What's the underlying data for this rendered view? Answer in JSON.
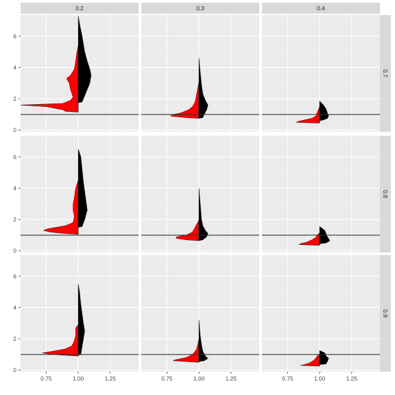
{
  "chart_data": {
    "type": "split-violin",
    "facet_cols": [
      "0.2",
      "0.3",
      "0.4"
    ],
    "facet_rows": [
      "0.7",
      "0.8",
      "0.9"
    ],
    "x_ticks": [
      "0.75",
      "1.00",
      "1.25"
    ],
    "x_tick_values": [
      0.75,
      1.0,
      1.25
    ],
    "y_ticks": [
      "0",
      "2",
      "4",
      "6"
    ],
    "y_tick_values": [
      0,
      2,
      4,
      6
    ],
    "xlim": [
      0.55,
      1.47
    ],
    "ylim": [
      -0.1,
      7.35
    ],
    "reference_line_y": 1,
    "colors": {
      "left_half": "#ff0000",
      "right_half": "#000000",
      "outline": "#1a1a1a",
      "panel_bg": "#ebebeb",
      "grid_major": "#ffffff",
      "strip_bg": "#d9d9d9",
      "hline": "#333333"
    },
    "panels": [
      {
        "col": "0.2",
        "row": "0.7",
        "left": [
          [
            1.15,
            0
          ],
          [
            1.2,
            0.1
          ],
          [
            1.3,
            0.12
          ],
          [
            1.5,
            0.25
          ],
          [
            1.6,
            0.45
          ],
          [
            1.7,
            0.12
          ],
          [
            1.9,
            0.06
          ],
          [
            2.1,
            0.04
          ],
          [
            2.6,
            0.06
          ],
          [
            3.0,
            0.07
          ],
          [
            3.3,
            0.09
          ],
          [
            3.5,
            0.06
          ],
          [
            3.9,
            0.03
          ],
          [
            4.4,
            0.02
          ],
          [
            5.0,
            0.01
          ],
          [
            5.4,
            0
          ]
        ],
        "right": [
          [
            1.75,
            0
          ],
          [
            1.8,
            0.03
          ],
          [
            2.2,
            0.05
          ],
          [
            2.6,
            0.07
          ],
          [
            3.0,
            0.09
          ],
          [
            3.5,
            0.1
          ],
          [
            3.9,
            0.09
          ],
          [
            4.4,
            0.07
          ],
          [
            5.0,
            0.05
          ],
          [
            6.0,
            0.03
          ],
          [
            6.8,
            0.01
          ],
          [
            7.3,
            0
          ]
        ]
      },
      {
        "col": "0.3",
        "row": "0.7",
        "left": [
          [
            0.75,
            0
          ],
          [
            0.8,
            0.1
          ],
          [
            0.9,
            0.22
          ],
          [
            1.0,
            0.2
          ],
          [
            1.1,
            0.14
          ],
          [
            1.3,
            0.08
          ],
          [
            1.5,
            0.05
          ],
          [
            1.8,
            0.03
          ],
          [
            2.2,
            0.02
          ],
          [
            2.6,
            0.01
          ],
          [
            3.1,
            0
          ]
        ],
        "right": [
          [
            0.75,
            0
          ],
          [
            0.8,
            0.03
          ],
          [
            1.0,
            0.04
          ],
          [
            1.3,
            0.06
          ],
          [
            1.6,
            0.07
          ],
          [
            1.9,
            0.05
          ],
          [
            2.3,
            0.03
          ],
          [
            2.9,
            0.02
          ],
          [
            3.7,
            0.01
          ],
          [
            4.6,
            0
          ]
        ]
      },
      {
        "col": "0.4",
        "row": "0.7",
        "left": [
          [
            0.45,
            0
          ],
          [
            0.5,
            0.18
          ],
          [
            0.55,
            0.17
          ],
          [
            0.65,
            0.12
          ],
          [
            0.75,
            0.06
          ],
          [
            0.9,
            0.03
          ],
          [
            1.1,
            0.02
          ],
          [
            1.3,
            0.01
          ],
          [
            1.5,
            0
          ]
        ],
        "right": [
          [
            0.6,
            0
          ],
          [
            0.65,
            0.03
          ],
          [
            0.75,
            0.06
          ],
          [
            0.9,
            0.07
          ],
          [
            1.1,
            0.06
          ],
          [
            1.35,
            0.05
          ],
          [
            1.6,
            0.03
          ],
          [
            1.85,
            0
          ]
        ]
      },
      {
        "col": "0.2",
        "row": "0.8",
        "left": [
          [
            1.05,
            0
          ],
          [
            1.1,
            0.1
          ],
          [
            1.2,
            0.22
          ],
          [
            1.3,
            0.27
          ],
          [
            1.4,
            0.24
          ],
          [
            1.6,
            0.1
          ],
          [
            1.8,
            0.04
          ],
          [
            2.2,
            0.03
          ],
          [
            2.6,
            0.04
          ],
          [
            3.0,
            0.04
          ],
          [
            3.4,
            0.03
          ],
          [
            4.0,
            0.02
          ],
          [
            4.5,
            0
          ]
        ],
        "right": [
          [
            1.5,
            0
          ],
          [
            1.55,
            0.03
          ],
          [
            2.0,
            0.05
          ],
          [
            2.6,
            0.07
          ],
          [
            3.2,
            0.06
          ],
          [
            3.8,
            0.05
          ],
          [
            4.4,
            0.04
          ],
          [
            5.2,
            0.03
          ],
          [
            6.0,
            0.02
          ],
          [
            6.5,
            0
          ]
        ]
      },
      {
        "col": "0.3",
        "row": "0.8",
        "left": [
          [
            0.65,
            0
          ],
          [
            0.7,
            0.1
          ],
          [
            0.8,
            0.18
          ],
          [
            0.9,
            0.17
          ],
          [
            1.0,
            0.1
          ],
          [
            1.2,
            0.05
          ],
          [
            1.5,
            0.03
          ],
          [
            1.8,
            0.01
          ],
          [
            2.0,
            0
          ]
        ],
        "right": [
          [
            0.65,
            0
          ],
          [
            0.7,
            0.03
          ],
          [
            0.9,
            0.06
          ],
          [
            1.1,
            0.07
          ],
          [
            1.3,
            0.05
          ],
          [
            1.6,
            0.03
          ],
          [
            2.0,
            0.02
          ],
          [
            3.0,
            0.01
          ],
          [
            4.0,
            0
          ]
        ]
      },
      {
        "col": "0.4",
        "row": "0.8",
        "left": [
          [
            0.35,
            0
          ],
          [
            0.4,
            0.16
          ],
          [
            0.45,
            0.15
          ],
          [
            0.55,
            0.1
          ],
          [
            0.7,
            0.06
          ],
          [
            0.85,
            0.03
          ],
          [
            1.0,
            0.02
          ],
          [
            1.15,
            0
          ]
        ],
        "right": [
          [
            0.45,
            0
          ],
          [
            0.5,
            0.05
          ],
          [
            0.65,
            0.08
          ],
          [
            0.9,
            0.06
          ],
          [
            1.1,
            0.05
          ],
          [
            1.3,
            0.04
          ],
          [
            1.55,
            0
          ]
        ]
      },
      {
        "col": "0.2",
        "row": "0.9",
        "left": [
          [
            0.9,
            0
          ],
          [
            0.95,
            0.1
          ],
          [
            1.0,
            0.2
          ],
          [
            1.1,
            0.28
          ],
          [
            1.2,
            0.2
          ],
          [
            1.35,
            0.1
          ],
          [
            1.55,
            0.05
          ],
          [
            1.7,
            0.04
          ],
          [
            1.9,
            0.03
          ],
          [
            2.2,
            0.02
          ],
          [
            2.7,
            0.02
          ],
          [
            2.9,
            0
          ]
        ],
        "right": [
          [
            0.95,
            0
          ],
          [
            1.0,
            0.02
          ],
          [
            1.5,
            0.03
          ],
          [
            2.0,
            0.04
          ],
          [
            2.5,
            0.05
          ],
          [
            3.0,
            0.04
          ],
          [
            3.6,
            0.03
          ],
          [
            4.2,
            0.02
          ],
          [
            5.0,
            0.01
          ],
          [
            5.5,
            0
          ]
        ]
      },
      {
        "col": "0.3",
        "row": "0.9",
        "left": [
          [
            0.5,
            0
          ],
          [
            0.55,
            0.1
          ],
          [
            0.6,
            0.2
          ],
          [
            0.65,
            0.19
          ],
          [
            0.8,
            0.1
          ],
          [
            1.0,
            0.05
          ],
          [
            1.3,
            0.02
          ],
          [
            1.6,
            0.01
          ],
          [
            2.0,
            0
          ]
        ],
        "right": [
          [
            0.55,
            0
          ],
          [
            0.6,
            0.04
          ],
          [
            0.75,
            0.07
          ],
          [
            0.9,
            0.05
          ],
          [
            1.2,
            0.03
          ],
          [
            1.6,
            0.02
          ],
          [
            2.2,
            0.01
          ],
          [
            3.2,
            0
          ]
        ]
      },
      {
        "col": "0.4",
        "row": "0.9",
        "left": [
          [
            0.25,
            0
          ],
          [
            0.3,
            0.15
          ],
          [
            0.35,
            0.12
          ],
          [
            0.45,
            0.08
          ],
          [
            0.6,
            0.05
          ],
          [
            0.75,
            0.03
          ],
          [
            0.9,
            0.02
          ],
          [
            1.0,
            0
          ]
        ],
        "right": [
          [
            0.35,
            0
          ],
          [
            0.4,
            0.05
          ],
          [
            0.55,
            0.06
          ],
          [
            0.75,
            0.07
          ],
          [
            0.9,
            0.05
          ],
          [
            1.1,
            0.04
          ],
          [
            1.25,
            0
          ]
        ]
      }
    ]
  }
}
